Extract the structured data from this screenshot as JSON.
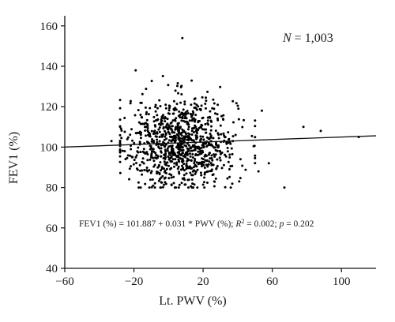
{
  "chart_data": {
    "type": "scatter",
    "xlabel": "Lt. PWV (%)",
    "ylabel": "FEV1 (%)",
    "xlim": [
      -60,
      120
    ],
    "ylim": [
      40,
      165
    ],
    "xticks": [
      -60,
      -20,
      20,
      60,
      100
    ],
    "yticks": [
      40,
      60,
      80,
      100,
      120,
      140,
      160
    ],
    "xtick_labels": [
      "−60",
      "−20",
      "20",
      "60",
      "100"
    ],
    "ytick_labels": [
      "40",
      "60",
      "80",
      "100",
      "120",
      "140",
      "160"
    ],
    "grid": false,
    "n_points": 1003,
    "center_x": 7.5,
    "center_y": 101.9,
    "spread_x": 16,
    "spread_y": 11,
    "outliers": [
      {
        "x": -33,
        "y": 103
      },
      {
        "x": -19,
        "y": 138
      },
      {
        "x": 8,
        "y": 154
      },
      {
        "x": 67,
        "y": 80
      },
      {
        "x": 78,
        "y": 110
      },
      {
        "x": 88,
        "y": 108
      },
      {
        "x": 110,
        "y": 105
      },
      {
        "x": 52,
        "y": 88
      },
      {
        "x": 58,
        "y": 92
      },
      {
        "x": 54,
        "y": 118
      }
    ],
    "regression": {
      "intercept": 101.887,
      "slope": 0.031,
      "x_range": [
        -60,
        120
      ]
    },
    "annotation_n": {
      "italic": "N",
      "rest": " = 1,003"
    },
    "annotation_eq": {
      "part1": "FEV1 (%) = 101.887 + 0.031 * PWV (%); ",
      "r": "R",
      "sup": "2",
      "part2": " = 0.002; ",
      "p": "p",
      "part3": " = 0.202"
    }
  }
}
